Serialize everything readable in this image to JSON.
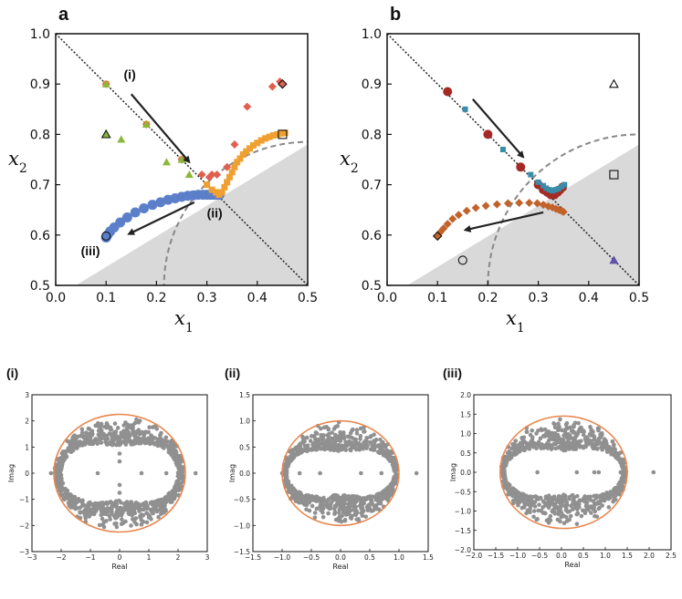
{
  "figure": {
    "panel_a_letter": "a",
    "panel_b_letter": "b",
    "sub_i_letter": "(i)",
    "sub_ii_letter": "(ii)",
    "sub_iii_letter": "(iii)"
  },
  "colors": {
    "blue": "#5b7fc9",
    "orange": "#f0a030",
    "red": "#e06050",
    "green": "#8bb83a",
    "darkred": "#a52a25",
    "teal": "#3a8ca8",
    "rust": "#c0622a",
    "purple": "#6050a8",
    "gray_region": "#d9d9d9",
    "eig_gray": "#909090",
    "circle_orange": "#e8874f"
  },
  "chart_data": [
    {
      "id": "a",
      "type": "scatter",
      "title": "a",
      "xlabel": "x_1",
      "ylabel": "x_2",
      "xlim": [
        0.0,
        0.5
      ],
      "ylim": [
        0.5,
        1.0
      ],
      "xticks": [
        "0.0",
        "0.1",
        "0.2",
        "0.3",
        "0.4",
        "0.5"
      ],
      "yticks": [
        "0.5",
        "0.6",
        "0.7",
        "0.8",
        "0.9",
        "1.0"
      ],
      "shaded_region": [
        [
          0.04,
          0.5
        ],
        [
          0.5,
          0.78
        ],
        [
          0.5,
          0.5
        ]
      ],
      "dashed_arc": {
        "cx": 0.5,
        "cy": 0.5,
        "r": 0.285
      },
      "diagonal": [
        [
          0.0,
          1.0
        ],
        [
          0.5,
          0.5
        ]
      ],
      "annotations": [
        {
          "text": "(i)",
          "x": 0.135,
          "y": 0.91
        },
        {
          "text": "(ii)",
          "x": 0.3,
          "y": 0.635
        },
        {
          "text": "(iii)",
          "x": 0.05,
          "y": 0.56
        }
      ],
      "arrows": [
        {
          "from": [
            0.15,
            0.88
          ],
          "to": [
            0.265,
            0.745
          ]
        },
        {
          "from": [
            0.275,
            0.665
          ],
          "to": [
            0.145,
            0.602
          ]
        }
      ],
      "series": [
        {
          "name": "blue circles",
          "marker": "circle",
          "color": "blue",
          "size": 11,
          "x": [
            0.1,
            0.103,
            0.108,
            0.116,
            0.128,
            0.142,
            0.158,
            0.175,
            0.192,
            0.208,
            0.223,
            0.237,
            0.25,
            0.262,
            0.273,
            0.283,
            0.292,
            0.3,
            0.307,
            0.313,
            0.318,
            0.322,
            0.325
          ],
          "y": [
            0.595,
            0.6,
            0.607,
            0.615,
            0.625,
            0.635,
            0.645,
            0.653,
            0.66,
            0.665,
            0.67,
            0.673,
            0.676,
            0.678,
            0.679,
            0.68,
            0.68,
            0.68,
            0.68,
            0.68,
            0.68,
            0.68,
            0.68
          ]
        },
        {
          "name": "orange squares",
          "marker": "square",
          "color": "orange",
          "size": 7,
          "x": [
            0.1,
            0.18,
            0.25,
            0.3,
            0.31,
            0.318,
            0.324,
            0.33,
            0.335,
            0.34,
            0.345,
            0.35,
            0.355,
            0.36,
            0.366,
            0.372,
            0.378,
            0.385,
            0.392,
            0.4,
            0.408,
            0.416,
            0.424,
            0.432,
            0.44,
            0.448,
            0.455
          ],
          "y": [
            0.9,
            0.82,
            0.75,
            0.7,
            0.69,
            0.685,
            0.68,
            0.685,
            0.695,
            0.705,
            0.715,
            0.725,
            0.735,
            0.745,
            0.752,
            0.76,
            0.766,
            0.772,
            0.778,
            0.783,
            0.788,
            0.792,
            0.795,
            0.798,
            0.8,
            0.802,
            0.803
          ]
        },
        {
          "name": "red diamonds",
          "marker": "diamond",
          "color": "red",
          "size": 9,
          "x": [
            0.1,
            0.18,
            0.25,
            0.29,
            0.305,
            0.31,
            0.32,
            0.34,
            0.355,
            0.38,
            0.43,
            0.445,
            0.45
          ],
          "y": [
            0.9,
            0.82,
            0.75,
            0.72,
            0.715,
            0.72,
            0.72,
            0.735,
            0.78,
            0.855,
            0.895,
            0.905,
            0.9
          ]
        },
        {
          "name": "green triangles",
          "marker": "triangle",
          "color": "green",
          "size": 9,
          "x": [
            0.1,
            0.18,
            0.1,
            0.13,
            0.22,
            0.25,
            0.265
          ],
          "y": [
            0.9,
            0.82,
            0.8,
            0.79,
            0.745,
            0.75,
            0.72
          ]
        },
        {
          "name": "open markers",
          "marker": "open",
          "color": "black",
          "size": 9,
          "points": [
            {
              "m": "triangle",
              "x": 0.1,
              "y": 0.8
            },
            {
              "m": "square",
              "x": 0.45,
              "y": 0.8
            },
            {
              "m": "diamond",
              "x": 0.45,
              "y": 0.9
            },
            {
              "m": "circle",
              "x": 0.1,
              "y": 0.598
            }
          ]
        }
      ]
    },
    {
      "id": "b",
      "type": "scatter",
      "title": "b",
      "xlabel": "x_1",
      "ylabel": "x_2",
      "xlim": [
        0.0,
        0.5
      ],
      "ylim": [
        0.5,
        1.0
      ],
      "xticks": [
        "0.0",
        "0.1",
        "0.2",
        "0.3",
        "0.4",
        "0.5"
      ],
      "yticks": [
        "0.5",
        "0.6",
        "0.7",
        "0.8",
        "0.9",
        "1.0"
      ],
      "shaded_region": [
        [
          0.04,
          0.5
        ],
        [
          0.5,
          0.78
        ],
        [
          0.5,
          0.5
        ]
      ],
      "dashed_arc": {
        "cx": 0.5,
        "cy": 0.5,
        "r": 0.3
      },
      "diagonal": [
        [
          0.0,
          1.0
        ],
        [
          0.5,
          0.5
        ]
      ],
      "arrows": [
        {
          "from": [
            0.17,
            0.87
          ],
          "to": [
            0.27,
            0.755
          ]
        },
        {
          "from": [
            0.31,
            0.645
          ],
          "to": [
            0.155,
            0.61
          ]
        }
      ],
      "series": [
        {
          "name": "dark red circles",
          "marker": "circle",
          "color": "darkred",
          "size": 10,
          "x": [
            0.12,
            0.2,
            0.265,
            0.3,
            0.31,
            0.318,
            0.325,
            0.332,
            0.338,
            0.343,
            0.348
          ],
          "y": [
            0.885,
            0.8,
            0.735,
            0.7,
            0.69,
            0.685,
            0.68,
            0.68,
            0.685,
            0.69,
            0.695
          ]
        },
        {
          "name": "teal squares",
          "marker": "square",
          "color": "teal",
          "size": 6,
          "x": [
            0.155,
            0.23,
            0.285,
            0.3,
            0.31,
            0.316,
            0.322,
            0.328,
            0.334,
            0.34,
            0.346,
            0.352
          ],
          "y": [
            0.85,
            0.77,
            0.72,
            0.705,
            0.698,
            0.693,
            0.69,
            0.688,
            0.69,
            0.692,
            0.696,
            0.7
          ]
        },
        {
          "name": "rust diamonds",
          "marker": "diamond",
          "color": "rust",
          "size": 9,
          "x": [
            0.1,
            0.105,
            0.112,
            0.12,
            0.13,
            0.142,
            0.158,
            0.176,
            0.196,
            0.218,
            0.24,
            0.262,
            0.282,
            0.298,
            0.31,
            0.32,
            0.328,
            0.335,
            0.341,
            0.346,
            0.35
          ],
          "y": [
            0.598,
            0.605,
            0.613,
            0.622,
            0.632,
            0.64,
            0.648,
            0.654,
            0.658,
            0.661,
            0.663,
            0.664,
            0.664,
            0.663,
            0.66,
            0.657,
            0.655,
            0.652,
            0.65,
            0.648,
            0.646
          ]
        },
        {
          "name": "purple triangle",
          "marker": "triangle",
          "color": "purple",
          "size": 10,
          "x": [
            0.45
          ],
          "y": [
            0.55
          ]
        },
        {
          "name": "open markers",
          "marker": "open",
          "color": "black",
          "size": 9,
          "points": [
            {
              "m": "triangle",
              "x": 0.45,
              "y": 0.9
            },
            {
              "m": "square",
              "x": 0.45,
              "y": 0.72
            },
            {
              "m": "diamond",
              "x": 0.1,
              "y": 0.598
            },
            {
              "m": "circle",
              "x": 0.15,
              "y": 0.55
            }
          ]
        }
      ]
    },
    {
      "id": "i",
      "type": "scatter",
      "title": "(i)",
      "xlabel": "Real",
      "ylabel": "Imag",
      "xlim": [
        -3,
        3
      ],
      "ylim": [
        -3,
        3
      ],
      "xticks": [
        "−3",
        "−2",
        "−1",
        "0",
        "1",
        "2",
        "3"
      ],
      "yticks": [
        "−3",
        "−2",
        "−1",
        "0",
        "1",
        "2",
        "3"
      ],
      "circle_radius": 2.25,
      "eigen_band": {
        "inner_x": 2.0,
        "inner_y": 1.4,
        "outer": 2.25
      },
      "outliers": [
        [
          0.75,
          0.0
        ],
        [
          -0.75,
          0.0
        ],
        [
          1.6,
          0.0
        ],
        [
          -2.35,
          0.0
        ],
        [
          2.6,
          0.0
        ],
        [
          0.0,
          0.75
        ],
        [
          0.0,
          -0.75
        ],
        [
          0.0,
          0.45
        ],
        [
          0.0,
          -0.45
        ]
      ]
    },
    {
      "id": "ii",
      "type": "scatter",
      "title": "(ii)",
      "xlabel": "Real",
      "ylabel": "Imag",
      "xlim": [
        -1.5,
        1.5
      ],
      "ylim": [
        -1.5,
        1.5
      ],
      "xticks": [
        "−1.5",
        "−1.0",
        "−0.5",
        "0.0",
        "0.5",
        "1.0",
        "1.5"
      ],
      "yticks": [
        "−1.5",
        "−1.0",
        "−0.5",
        "0.0",
        "0.5",
        "1.0",
        "1.5"
      ],
      "circle_radius": 1.0,
      "eigen_band": {
        "inner_x": 0.92,
        "inner_y": 0.55,
        "outer": 1.0
      },
      "outliers": [
        [
          0.35,
          0.0
        ],
        [
          -0.35,
          0.0
        ],
        [
          0.7,
          0.0
        ],
        [
          -0.7,
          0.0
        ],
        [
          1.3,
          0.0
        ],
        [
          -1.0,
          0.0
        ],
        [
          0.0,
          0.62
        ],
        [
          0.0,
          -0.62
        ]
      ]
    },
    {
      "id": "iii",
      "type": "scatter",
      "title": "(iii)",
      "xlabel": "Real",
      "ylabel": "Imag",
      "xlim": [
        -2.0,
        2.5
      ],
      "ylim": [
        -2.0,
        2.0
      ],
      "xticks": [
        "−2.0",
        "−1.5",
        "−1.0",
        "−0.5",
        "0.0",
        "0.5",
        "1.0",
        "1.5",
        "2.0",
        "2.5"
      ],
      "yticks": [
        "−2.0",
        "−1.5",
        "−1.0",
        "−0.5",
        "0.0",
        "0.5",
        "1.0",
        "1.5",
        "2.0"
      ],
      "circle_radius": 1.45,
      "circle_center": [
        0.05,
        0.0
      ],
      "eigen_band": {
        "inner_x": 1.35,
        "inner_y": 0.75,
        "outer": 1.45
      },
      "outliers": [
        [
          -0.55,
          0.0
        ],
        [
          0.35,
          0.0
        ],
        [
          0.75,
          0.0
        ],
        [
          0.85,
          0.0
        ],
        [
          1.35,
          0.0
        ],
        [
          -1.35,
          0.0
        ],
        [
          2.1,
          0.0
        ]
      ]
    }
  ]
}
